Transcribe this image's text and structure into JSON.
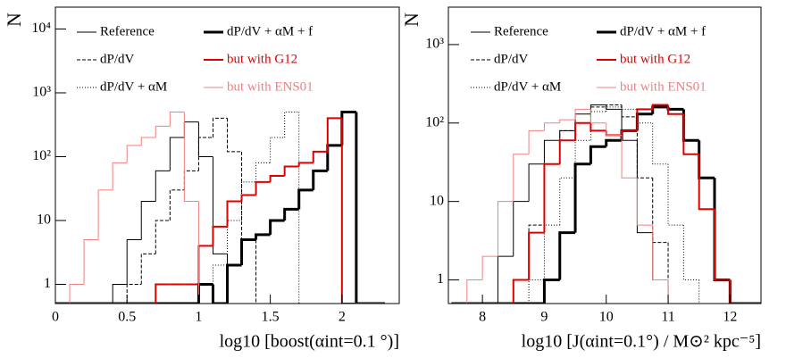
{
  "chart_data": [
    {
      "type": "histogram",
      "xlabel": "log10 [boost(αint=0.1 °)]",
      "ylabel": "N",
      "log_y": true,
      "xlim": [
        0,
        2.4
      ],
      "ylim": [
        0.5,
        22000
      ],
      "xticks": [
        0,
        0.5,
        1,
        1.5,
        2
      ],
      "yticks": [
        1,
        10,
        {
          "value": 100,
          "label": "10²"
        },
        {
          "value": 1000,
          "label": "10³"
        },
        {
          "value": 10000,
          "label": "10⁴"
        }
      ],
      "bins": [
        0,
        0.1,
        0.2,
        0.3,
        0.4,
        0.5,
        0.6,
        0.7,
        0.8,
        0.9,
        1.0,
        1.1,
        1.2,
        1.3,
        1.4,
        1.5,
        1.6,
        1.7,
        1.8,
        1.9,
        2.0,
        2.1,
        2.2,
        2.3
      ],
      "series": [
        {
          "name": "Reference",
          "color": "#000000",
          "style": "solid",
          "width": 1,
          "values": [
            0,
            0,
            0,
            0,
            1,
            5,
            20,
            60,
            200,
            350,
            100,
            3,
            0,
            0,
            0,
            0,
            0,
            0,
            0,
            0,
            0,
            0,
            0
          ]
        },
        {
          "name": "dP/dV",
          "color": "#000000",
          "style": "dashed",
          "width": 1,
          "values": [
            0,
            0,
            0,
            0,
            0,
            1,
            3,
            10,
            30,
            60,
            200,
            400,
            120,
            5,
            0,
            0,
            0,
            0,
            0,
            0,
            0,
            0,
            0
          ]
        },
        {
          "name": "dP/dV + αM",
          "color": "#000000",
          "style": "dotted",
          "width": 1,
          "values": [
            0,
            0,
            0,
            0,
            0,
            0,
            0,
            0,
            0,
            0,
            1,
            2,
            10,
            40,
            80,
            200,
            500,
            0,
            0,
            0,
            0,
            0,
            0
          ]
        },
        {
          "name": "dP/dV + αM + f",
          "color": "#000000",
          "style": "solid",
          "width": 3,
          "values": [
            0,
            0,
            0,
            0,
            0,
            0,
            0,
            0,
            0,
            0,
            1,
            0,
            2,
            5,
            6,
            10,
            15,
            30,
            60,
            150,
            500,
            0,
            0
          ]
        },
        {
          "name": "but with G12",
          "color": "#e00000",
          "style": "solid",
          "width": 2,
          "values": [
            0,
            0,
            0,
            0,
            0,
            0,
            0,
            1,
            1,
            1,
            4,
            8,
            20,
            25,
            40,
            50,
            70,
            80,
            120,
            400,
            0,
            0,
            0
          ]
        },
        {
          "name": "but with ENS01",
          "color": "#f08080",
          "style": "solid",
          "width": 1,
          "values": [
            0,
            1,
            5,
            30,
            80,
            150,
            200,
            300,
            500,
            20,
            0,
            0,
            0,
            0,
            0,
            0,
            0,
            0,
            0,
            0,
            0,
            0,
            0
          ]
        }
      ]
    },
    {
      "type": "histogram",
      "xlabel": "log10 [J(αint=0.1°) / M⊙² kpc⁻⁵]",
      "ylabel": "N",
      "log_y": true,
      "xlim": [
        7.45,
        12.5
      ],
      "ylim": [
        0.5,
        3000
      ],
      "xticks": [
        8,
        9,
        10,
        11,
        12
      ],
      "yticks": [
        1,
        10,
        {
          "value": 100,
          "label": "10²"
        },
        {
          "value": 1000,
          "label": "10³"
        }
      ],
      "bins": [
        7.5,
        7.75,
        8,
        8.25,
        8.5,
        8.75,
        9,
        9.25,
        9.5,
        9.75,
        10,
        10.25,
        10.5,
        10.75,
        11,
        11.25,
        11.5,
        11.75,
        12,
        12.25,
        12.5
      ],
      "series": [
        {
          "name": "Reference",
          "color": "#000000",
          "style": "solid",
          "width": 1,
          "values": [
            0,
            0,
            0,
            2,
            10,
            30,
            60,
            80,
            130,
            170,
            150,
            60,
            4,
            1,
            0,
            0,
            0,
            0,
            0,
            0
          ]
        },
        {
          "name": "dP/dV",
          "color": "#000000",
          "style": "dashed",
          "width": 1,
          "values": [
            0,
            0,
            0,
            0,
            1,
            5,
            30,
            80,
            100,
            160,
            170,
            120,
            20,
            3,
            0,
            0,
            0,
            0,
            0,
            0
          ]
        },
        {
          "name": "dP/dV + αM",
          "color": "#000000",
          "style": "dotted",
          "width": 1,
          "values": [
            0,
            0,
            0,
            0,
            0,
            1,
            5,
            20,
            60,
            140,
            160,
            150,
            100,
            30,
            5,
            1,
            0,
            0,
            0,
            0
          ]
        },
        {
          "name": "dP/dV + αM + f",
          "color": "#000000",
          "style": "solid",
          "width": 3,
          "values": [
            0,
            0,
            0,
            0,
            0,
            0,
            1,
            4,
            30,
            50,
            60,
            80,
            130,
            160,
            150,
            60,
            20,
            1,
            0,
            0
          ]
        },
        {
          "name": "but with G12",
          "color": "#e00000",
          "style": "solid",
          "width": 2,
          "values": [
            0,
            0,
            0,
            0,
            1,
            4,
            30,
            60,
            100,
            80,
            70,
            80,
            150,
            170,
            130,
            40,
            8,
            1,
            0,
            0
          ]
        },
        {
          "name": "but with ENS01",
          "color": "#f08080",
          "style": "solid",
          "width": 1,
          "values": [
            0,
            1,
            2,
            10,
            40,
            80,
            100,
            110,
            150,
            100,
            70,
            20,
            5,
            1,
            0,
            0,
            0,
            0,
            0,
            0
          ]
        }
      ]
    }
  ]
}
